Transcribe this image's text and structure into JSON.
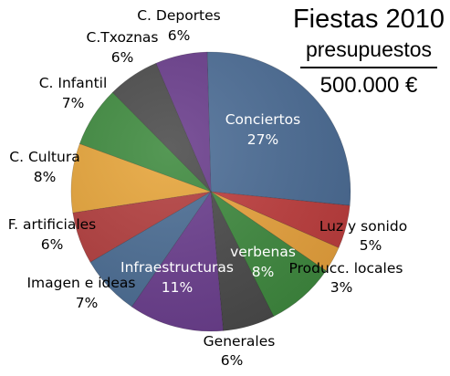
{
  "header": {
    "title": "Fiestas 2010",
    "subtitle": "presupuestos",
    "total": "500.000 €"
  },
  "chart_data": {
    "type": "pie",
    "slices": [
      {
        "label": "Conciertos",
        "pct": "27%",
        "value": 27,
        "color": "#4C6D96"
      },
      {
        "label": "Luz y sonido",
        "pct": "5%",
        "value": 5,
        "color": "#BF3E3E"
      },
      {
        "label": "Producc. locales",
        "pct": "3%",
        "value": 3,
        "color": "#E9A33D"
      },
      {
        "label": "verbenas",
        "pct": "8%",
        "value": 8,
        "color": "#3F8A3F"
      },
      {
        "label": "Generales",
        "pct": "6%",
        "value": 6,
        "color": "#4A4A4A"
      },
      {
        "label": "Infraestructuras",
        "pct": "11%",
        "value": 11,
        "color": "#6B3E8E"
      },
      {
        "label": "Imagen e ideas",
        "pct": "7%",
        "value": 7,
        "color": "#4B6D94"
      },
      {
        "label": "F. artificiales",
        "pct": "6%",
        "value": 6,
        "color": "#B33E3E"
      },
      {
        "label": "C. Cultura",
        "pct": "8%",
        "value": 8,
        "color": "#E7A53A"
      },
      {
        "label": "C. Infantil",
        "pct": "7%",
        "value": 7,
        "color": "#3E8A3E"
      },
      {
        "label": "C.Txoznas",
        "pct": "6%",
        "value": 6,
        "color": "#4B4B4B"
      },
      {
        "label": "C. Deportes",
        "pct": "6%",
        "value": 6,
        "color": "#6A3D8C"
      }
    ]
  }
}
